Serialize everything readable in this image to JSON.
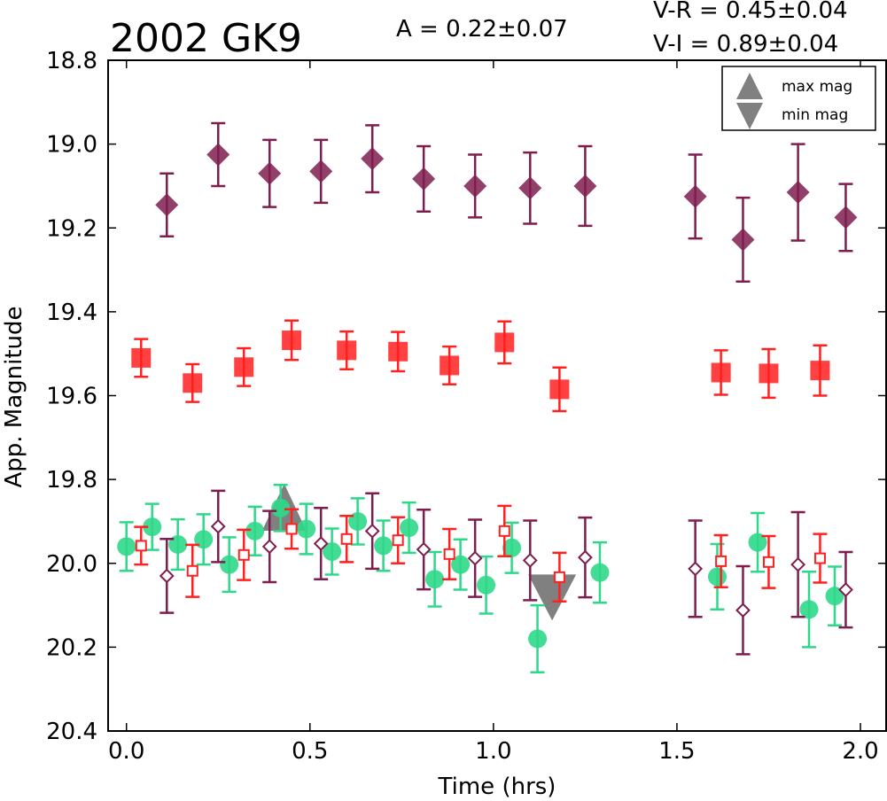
{
  "chart_data": {
    "type": "scatter",
    "title": "2002 GK9",
    "annotations": {
      "amplitude": "A  = 0.22±0.07",
      "vr": "V-R = 0.45±0.04",
      "vi": "V-I  = 0.89±0.04"
    },
    "xlabel": "Time (hrs)",
    "ylabel": "App. Magnitude",
    "xlim": [
      -0.05,
      2.07
    ],
    "ylim": [
      20.4,
      18.8
    ],
    "y_inverted": true,
    "xticks": [
      "0.0",
      "0.5",
      "1.0",
      "1.5",
      "2.0"
    ],
    "yticks": [
      "18.8",
      "19.0",
      "19.2",
      "19.4",
      "19.6",
      "19.8",
      "20.0",
      "20.2",
      "20.4"
    ],
    "grid": false,
    "legend": {
      "placement": "top-right",
      "entries": [
        {
          "label": "max mag",
          "marker": "triangle-up",
          "color": "#808080"
        },
        {
          "label": "min mag",
          "marker": "triangle-down",
          "color": "#808080"
        }
      ]
    },
    "colors": {
      "I": "#7f1d4f",
      "R": "#ff2020",
      "V": "#2ed88a",
      "extrema": "#808080"
    },
    "series": [
      {
        "band": "I",
        "style": "filled-diamond",
        "color": "#7f1d4f",
        "x": [
          0.11,
          0.25,
          0.39,
          0.53,
          0.67,
          0.81,
          0.95,
          1.1,
          1.25,
          1.55,
          1.68,
          1.83,
          1.96
        ],
        "y": [
          19.145,
          19.025,
          19.07,
          19.065,
          19.035,
          19.083,
          19.1,
          19.105,
          19.1,
          19.125,
          19.228,
          19.115,
          19.175
        ],
        "err": [
          0.075,
          0.075,
          0.08,
          0.075,
          0.08,
          0.078,
          0.075,
          0.085,
          0.095,
          0.1,
          0.1,
          0.115,
          0.08
        ]
      },
      {
        "band": "R",
        "style": "filled-square",
        "color": "#ff2020",
        "x": [
          0.04,
          0.18,
          0.32,
          0.45,
          0.6,
          0.74,
          0.88,
          1.03,
          1.18,
          1.62,
          1.75,
          1.89
        ],
        "y": [
          19.51,
          19.57,
          19.532,
          19.468,
          19.492,
          19.495,
          19.528,
          19.473,
          19.585,
          19.545,
          19.547,
          19.54
        ],
        "err": [
          0.045,
          0.045,
          0.045,
          0.047,
          0.045,
          0.047,
          0.045,
          0.05,
          0.052,
          0.053,
          0.058,
          0.06
        ]
      },
      {
        "band": "V",
        "style": "filled-circle",
        "color": "#2ed88a",
        "x": [
          0.0,
          0.07,
          0.14,
          0.21,
          0.28,
          0.35,
          0.42,
          0.49,
          0.56,
          0.63,
          0.7,
          0.77,
          0.84,
          0.91,
          0.98,
          1.05,
          1.12,
          1.29,
          1.61,
          1.72,
          1.86,
          1.93
        ],
        "y": [
          19.96,
          19.913,
          19.955,
          19.943,
          20.003,
          19.923,
          19.868,
          19.918,
          19.972,
          19.9,
          19.958,
          19.915,
          20.038,
          20.003,
          20.052,
          19.963,
          20.18,
          20.022,
          20.032,
          19.95,
          20.11,
          20.078
        ],
        "err": [
          0.058,
          0.055,
          0.06,
          0.06,
          0.065,
          0.058,
          0.055,
          0.06,
          0.055,
          0.055,
          0.06,
          0.06,
          0.065,
          0.06,
          0.068,
          0.06,
          0.08,
          0.072,
          0.078,
          0.07,
          0.09,
          0.07
        ]
      },
      {
        "band": "R-V",
        "style": "open-square",
        "color": "#ff2020",
        "x": [
          0.04,
          0.18,
          0.32,
          0.45,
          0.6,
          0.74,
          0.88,
          1.03,
          1.18,
          1.62,
          1.75,
          1.89
        ],
        "y": [
          19.958,
          20.018,
          19.98,
          19.918,
          19.942,
          19.945,
          19.978,
          19.923,
          20.033,
          19.995,
          19.997,
          19.988
        ],
        "err": [
          0.045,
          0.062,
          0.06,
          0.047,
          0.055,
          0.055,
          0.06,
          0.06,
          0.058,
          0.062,
          0.062,
          0.058
        ]
      },
      {
        "band": "I-V",
        "style": "open-diamond",
        "color": "#7f1d4f",
        "x": [
          0.11,
          0.25,
          0.39,
          0.53,
          0.67,
          0.81,
          0.95,
          1.1,
          1.25,
          1.55,
          1.68,
          1.83,
          1.96
        ],
        "y": [
          20.03,
          19.912,
          19.96,
          19.953,
          19.923,
          19.967,
          19.988,
          19.993,
          19.986,
          20.013,
          20.112,
          20.003,
          20.063
        ],
        "err": [
          0.088,
          0.085,
          0.085,
          0.085,
          0.09,
          0.095,
          0.092,
          0.095,
          0.095,
          0.115,
          0.105,
          0.125,
          0.09
        ]
      }
    ],
    "extrema": [
      {
        "label": "max mag",
        "marker": "triangle-up",
        "x": 0.43,
        "y": 19.88
      },
      {
        "label": "min mag",
        "marker": "triangle-down",
        "x": 1.16,
        "y": 20.09
      }
    ]
  }
}
